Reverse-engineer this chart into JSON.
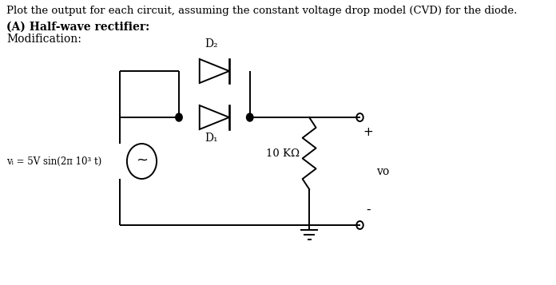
{
  "title_line": "Plot the output for each circuit, assuming the constant voltage drop model (CVD) for the diode.",
  "subtitle_bold": "(A) Half-wave rectifier:",
  "subtitle_normal": "Modification:",
  "diode2_label": "D₂",
  "diode1_label": "D₁",
  "resistor_label": "10 KΩ",
  "output_label": "vo",
  "source_label": "vᵢ = 5V sin(2π 10³ t)",
  "plus_label": "+",
  "minus_label": "-",
  "bg_color": "#ffffff",
  "line_color": "#000000",
  "text_color": "#000000",
  "figsize": [
    6.96,
    3.57
  ],
  "dpi": 100,
  "title_fontsize": 9.5,
  "label_fontsize": 10,
  "src_label_fontsize": 8.5
}
